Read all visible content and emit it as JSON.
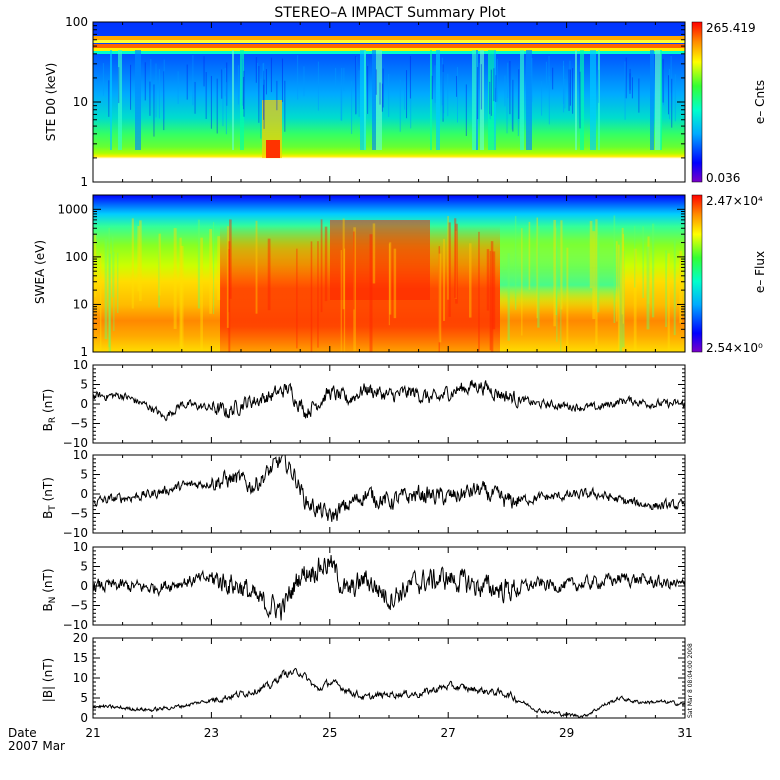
{
  "chart_data": {
    "title": "STEREO–A IMPACT Summary Plot",
    "type": "line",
    "date_label": "Date",
    "date_sub": "2007 Mar",
    "x_ticks": [
      "21",
      "23",
      "25",
      "27",
      "29",
      "31"
    ],
    "xlim": [
      21,
      31
    ],
    "side_label": "Sat Mar  8 08:04:00 2008",
    "panels": [
      {
        "name": "ste",
        "type": "heatmap",
        "ylabel": "STE D0 (keV)",
        "y_scale": "log",
        "ylim": [
          1,
          100
        ],
        "y_ticks": [
          "1",
          "10",
          "100"
        ],
        "colorbar": {
          "label": "e– Cnts",
          "max": "265.419",
          "min": "0.036"
        }
      },
      {
        "name": "swea",
        "type": "heatmap",
        "ylabel": "SWEA (eV)",
        "y_scale": "log",
        "ylim": [
          1,
          2000
        ],
        "y_ticks": [
          "1",
          "10",
          "100",
          "1000"
        ],
        "colorbar": {
          "label": "e– Flux",
          "max": "2.47×10⁴",
          "min": "2.54×10⁰"
        }
      },
      {
        "name": "br",
        "type": "line",
        "ylabel": "B",
        "ylabel_sub": "R",
        "ylabel_unit": " (nT)",
        "ylim": [
          -10,
          10
        ],
        "y_ticks": [
          "−10",
          "−5",
          "0",
          "5",
          "10"
        ],
        "anchors": [
          [
            21,
            2
          ],
          [
            21.5,
            2.2
          ],
          [
            22,
            -1
          ],
          [
            22.2,
            -3.5
          ],
          [
            22.5,
            0
          ],
          [
            23,
            -1
          ],
          [
            23.3,
            -2
          ],
          [
            23.5,
            0
          ],
          [
            24,
            2
          ],
          [
            24.3,
            4
          ],
          [
            24.6,
            -2
          ],
          [
            25,
            3
          ],
          [
            25.3,
            1
          ],
          [
            25.6,
            4
          ],
          [
            26,
            2
          ],
          [
            26.4,
            3
          ],
          [
            26.8,
            1
          ],
          [
            27,
            3
          ],
          [
            27.5,
            5
          ],
          [
            28,
            2
          ],
          [
            28.5,
            0
          ],
          [
            29,
            -0.5
          ],
          [
            29.5,
            -1
          ],
          [
            30,
            1
          ],
          [
            30.5,
            0
          ],
          [
            31,
            0
          ]
        ],
        "noise": 2.2
      },
      {
        "name": "bt",
        "type": "line",
        "ylabel": "B",
        "ylabel_sub": "T",
        "ylabel_unit": " (nT)",
        "ylim": [
          -10,
          10
        ],
        "y_ticks": [
          "−10",
          "−5",
          "0",
          "5",
          "10"
        ],
        "anchors": [
          [
            21,
            -2
          ],
          [
            21.5,
            -1
          ],
          [
            22,
            0
          ],
          [
            22.5,
            2
          ],
          [
            23,
            3
          ],
          [
            23.4,
            4
          ],
          [
            23.7,
            2
          ],
          [
            24,
            6
          ],
          [
            24.2,
            9
          ],
          [
            24.4,
            5
          ],
          [
            24.6,
            -2
          ],
          [
            25,
            -6
          ],
          [
            25.3,
            -3
          ],
          [
            25.6,
            0
          ],
          [
            26,
            -2
          ],
          [
            26.5,
            0
          ],
          [
            27,
            -1
          ],
          [
            27.5,
            1
          ],
          [
            28,
            -2
          ],
          [
            28.5,
            -1
          ],
          [
            29,
            -0.5
          ],
          [
            29.5,
            0
          ],
          [
            30,
            -2
          ],
          [
            30.5,
            -3
          ],
          [
            31,
            -3
          ]
        ],
        "noise": 2.6
      },
      {
        "name": "bn",
        "type": "line",
        "ylabel": "B",
        "ylabel_sub": "N",
        "ylabel_unit": " (nT)",
        "ylim": [
          -10,
          10
        ],
        "y_ticks": [
          "−10",
          "−5",
          "0",
          "5",
          "10"
        ],
        "anchors": [
          [
            21,
            0
          ],
          [
            21.5,
            0
          ],
          [
            22,
            -0.5
          ],
          [
            22.5,
            1
          ],
          [
            23,
            2
          ],
          [
            23.5,
            0
          ],
          [
            23.8,
            -4
          ],
          [
            24.2,
            -6
          ],
          [
            24.5,
            3
          ],
          [
            25,
            6
          ],
          [
            25.3,
            -2
          ],
          [
            25.6,
            2
          ],
          [
            26,
            -3
          ],
          [
            26.5,
            1
          ],
          [
            27,
            2
          ],
          [
            27.5,
            0
          ],
          [
            28,
            -1
          ],
          [
            28.5,
            0.5
          ],
          [
            29,
            0
          ],
          [
            29.5,
            1
          ],
          [
            30,
            2
          ],
          [
            30.5,
            1
          ],
          [
            31,
            0
          ]
        ],
        "noise": 3.4
      },
      {
        "name": "bmag",
        "type": "line",
        "ylabel": "|B| (nT)",
        "ylim": [
          0,
          20
        ],
        "y_ticks": [
          "0",
          "5",
          "10",
          "15",
          "20"
        ],
        "anchors": [
          [
            21,
            3
          ],
          [
            21.5,
            2.5
          ],
          [
            22,
            2
          ],
          [
            22.5,
            3
          ],
          [
            23,
            4.5
          ],
          [
            23.5,
            6
          ],
          [
            24,
            8
          ],
          [
            24.2,
            11
          ],
          [
            24.5,
            11.5
          ],
          [
            24.8,
            7
          ],
          [
            25,
            9
          ],
          [
            25.3,
            7
          ],
          [
            25.6,
            5
          ],
          [
            26,
            6
          ],
          [
            26.5,
            6
          ],
          [
            27,
            8
          ],
          [
            27.5,
            7
          ],
          [
            28,
            6
          ],
          [
            28.5,
            2
          ],
          [
            29,
            0.8
          ],
          [
            29.3,
            0.5
          ],
          [
            29.6,
            3
          ],
          [
            29.9,
            5
          ],
          [
            30.2,
            4
          ],
          [
            30.6,
            4
          ],
          [
            31,
            3.5
          ]
        ],
        "noise": 1.0,
        "clip_min": 0.2
      }
    ]
  }
}
